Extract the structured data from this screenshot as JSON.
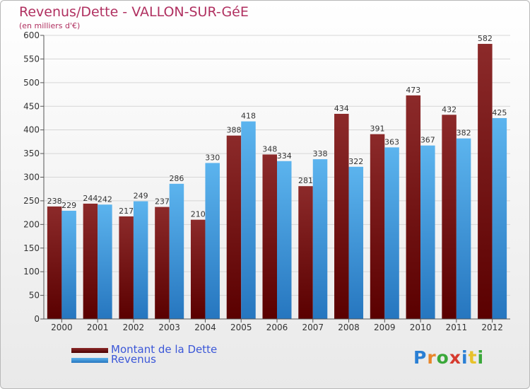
{
  "chart_data": {
    "type": "bar",
    "title": "Revenus/Dette - VALLON-SUR-GéE",
    "subtitle": "(en milliers d'€)",
    "categories": [
      "2000",
      "2001",
      "2002",
      "2003",
      "2004",
      "2005",
      "2006",
      "2007",
      "2008",
      "2009",
      "2010",
      "2011",
      "2012"
    ],
    "series": [
      {
        "name": "Montant de la Dette",
        "color": "#7a1a1a",
        "values": [
          238,
          244,
          217,
          237,
          210,
          388,
          348,
          281,
          434,
          391,
          473,
          432,
          582
        ]
      },
      {
        "name": "Revenus",
        "color": "#4aa3e4",
        "values": [
          229,
          242,
          249,
          286,
          330,
          418,
          334,
          338,
          322,
          363,
          367,
          382,
          425
        ]
      }
    ],
    "ylim": [
      0,
      600
    ],
    "yticks": [
      0,
      50,
      100,
      150,
      200,
      250,
      300,
      350,
      400,
      450,
      500,
      550,
      600
    ],
    "grid": true,
    "legend": "bottom-left"
  },
  "logo": {
    "letters": [
      {
        "ch": "P",
        "color": "#2a7fd4"
      },
      {
        "ch": "r",
        "color": "#e8862a"
      },
      {
        "ch": "o",
        "color": "#3aa83a"
      },
      {
        "ch": "x",
        "color": "#d63b2f"
      },
      {
        "ch": "i",
        "color": "#2a7fd4"
      },
      {
        "ch": "t",
        "color": "#e8c22a"
      },
      {
        "ch": "i",
        "color": "#3aa83a"
      }
    ]
  }
}
